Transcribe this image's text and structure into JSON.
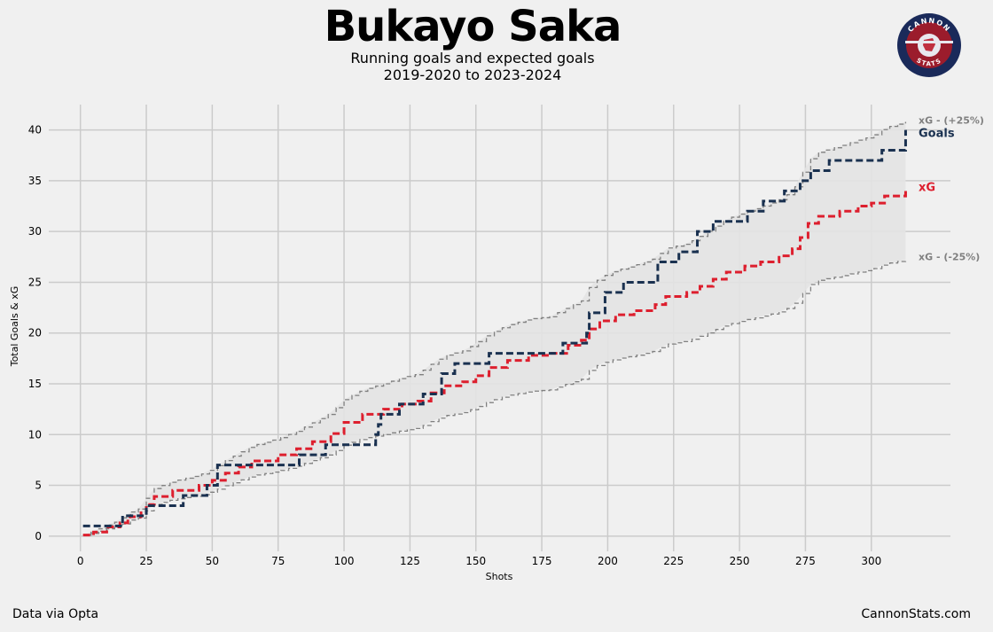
{
  "header": {
    "title": "Bukayo Saka",
    "subtitle_line1": "Running goals and expected goals",
    "subtitle_line2": "2019-2020 to 2023-2024"
  },
  "logo": {
    "top_text": "CANNON",
    "bottom_text": "STATS",
    "colors": {
      "ring": "#1a2a5a",
      "inner": "#9b1c2c"
    }
  },
  "footer": {
    "source": "Data via Opta",
    "site": "CannonStats.com"
  },
  "chart_data": {
    "type": "line",
    "xlabel": "Shots",
    "ylabel": "Total Goals & xG",
    "xlim": [
      -12,
      330
    ],
    "ylim": [
      -1.5,
      42.5
    ],
    "xticks": [
      0,
      25,
      50,
      75,
      100,
      125,
      150,
      175,
      200,
      225,
      250,
      275,
      300
    ],
    "yticks": [
      0,
      5,
      10,
      15,
      20,
      25,
      30,
      35,
      40
    ],
    "grid": true,
    "colors": {
      "goals": "#1a3150",
      "xg": "#dd1f2e",
      "band": "#808080",
      "band_fill": "#e3e3e3"
    },
    "end_labels": {
      "goals": "Goals",
      "xg": "xG",
      "upper": "xG - (+25%)",
      "lower": "xG - (-25%)"
    },
    "goals": [
      [
        1,
        1
      ],
      [
        15,
        1
      ],
      [
        16,
        2
      ],
      [
        24,
        2
      ],
      [
        25,
        3
      ],
      [
        38,
        3
      ],
      [
        39,
        4
      ],
      [
        47,
        4
      ],
      [
        48,
        5
      ],
      [
        51,
        5
      ],
      [
        52,
        7
      ],
      [
        82,
        7
      ],
      [
        83,
        8
      ],
      [
        92,
        8
      ],
      [
        93,
        9
      ],
      [
        111,
        9
      ],
      [
        112,
        10
      ],
      [
        113,
        11
      ],
      [
        114,
        12
      ],
      [
        120,
        12
      ],
      [
        121,
        13
      ],
      [
        129,
        13
      ],
      [
        130,
        14
      ],
      [
        136,
        14
      ],
      [
        137,
        16
      ],
      [
        141,
        16
      ],
      [
        142,
        17
      ],
      [
        154,
        17
      ],
      [
        155,
        18
      ],
      [
        182,
        18
      ],
      [
        183,
        19
      ],
      [
        190,
        19
      ],
      [
        192,
        20
      ],
      [
        193,
        22
      ],
      [
        198,
        22
      ],
      [
        199,
        24
      ],
      [
        205,
        24
      ],
      [
        206,
        25
      ],
      [
        218,
        25
      ],
      [
        219,
        27
      ],
      [
        226,
        27
      ],
      [
        227,
        28
      ],
      [
        233,
        28
      ],
      [
        234,
        30
      ],
      [
        239,
        30
      ],
      [
        240,
        31
      ],
      [
        252,
        31
      ],
      [
        253,
        32
      ],
      [
        258,
        32
      ],
      [
        259,
        33
      ],
      [
        266,
        33
      ],
      [
        267,
        34
      ],
      [
        272,
        34
      ],
      [
        273,
        35
      ],
      [
        276,
        35
      ],
      [
        277,
        36
      ],
      [
        283,
        36
      ],
      [
        284,
        37
      ],
      [
        303,
        37
      ],
      [
        304,
        38
      ],
      [
        311,
        38
      ],
      [
        313,
        40
      ]
    ],
    "xg": [
      [
        1,
        0.1
      ],
      [
        5,
        0.4
      ],
      [
        10,
        0.9
      ],
      [
        15,
        1.3
      ],
      [
        18,
        1.9
      ],
      [
        23,
        2.3
      ],
      [
        25,
        3.1
      ],
      [
        28,
        3.9
      ],
      [
        35,
        4.5
      ],
      [
        45,
        5.0
      ],
      [
        50,
        5.5
      ],
      [
        55,
        6.2
      ],
      [
        60,
        6.8
      ],
      [
        65,
        7.4
      ],
      [
        75,
        8.0
      ],
      [
        82,
        8.6
      ],
      [
        88,
        9.3
      ],
      [
        95,
        10.1
      ],
      [
        100,
        11.2
      ],
      [
        107,
        12.0
      ],
      [
        115,
        12.5
      ],
      [
        122,
        13.0
      ],
      [
        128,
        13.3
      ],
      [
        133,
        14.1
      ],
      [
        138,
        14.8
      ],
      [
        145,
        15.2
      ],
      [
        150,
        15.8
      ],
      [
        155,
        16.6
      ],
      [
        162,
        17.3
      ],
      [
        170,
        17.8
      ],
      [
        178,
        18.0
      ],
      [
        185,
        18.8
      ],
      [
        190,
        19.3
      ],
      [
        193,
        20.4
      ],
      [
        197,
        21.2
      ],
      [
        203,
        21.8
      ],
      [
        210,
        22.2
      ],
      [
        218,
        22.8
      ],
      [
        222,
        23.6
      ],
      [
        230,
        24.0
      ],
      [
        235,
        24.6
      ],
      [
        240,
        25.3
      ],
      [
        245,
        26.0
      ],
      [
        252,
        26.6
      ],
      [
        258,
        27.0
      ],
      [
        265,
        27.6
      ],
      [
        270,
        28.3
      ],
      [
        273,
        29.4
      ],
      [
        276,
        30.8
      ],
      [
        280,
        31.5
      ],
      [
        288,
        32.0
      ],
      [
        295,
        32.5
      ],
      [
        300,
        32.8
      ],
      [
        305,
        33.5
      ],
      [
        313,
        34.0
      ]
    ]
  }
}
